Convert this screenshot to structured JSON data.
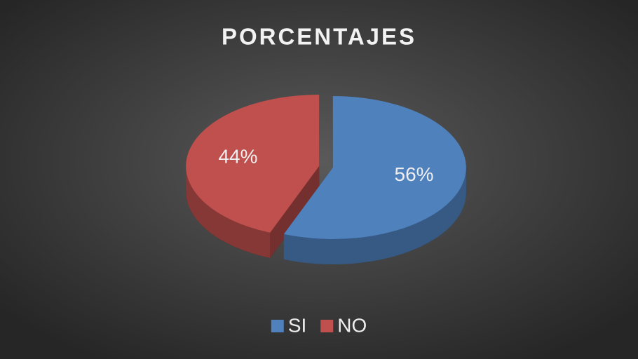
{
  "chart_data": {
    "type": "pie",
    "title": "PORCENTAJES",
    "categories": [
      "SI",
      "NO"
    ],
    "values": [
      56,
      44
    ],
    "value_labels": [
      "56%",
      "44%"
    ],
    "colors": [
      "#4f81bd",
      "#c0504d"
    ],
    "legend": "bottom"
  }
}
